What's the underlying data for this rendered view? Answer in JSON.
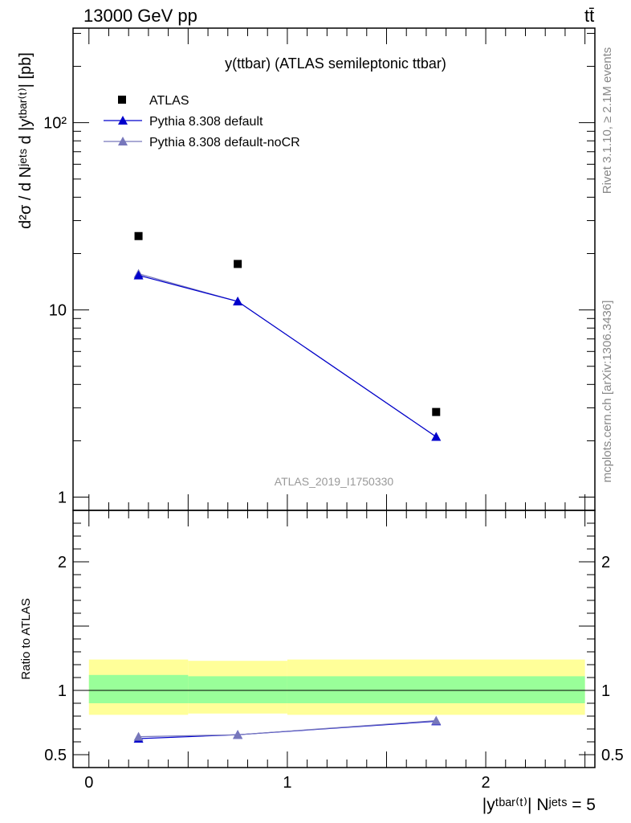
{
  "header": {
    "left": "13000 GeV pp",
    "right": "tt̄"
  },
  "side_labels": {
    "rivet": "Rivet 3.1.10, ≥ 2.1M events",
    "mcplots": "mcplots.cern.ch [arXiv:1306.3436]"
  },
  "chart_data": [
    {
      "type": "scatter",
      "panel": "main",
      "title": "y(ttbar) (ATLAS semileptonic ttbar)",
      "ylabel": "d²σ / d Nʲᵉᵗˢ d |yᵗᵇᵃʳ⁽ᵗ⁾| [pb]",
      "xlabel": "",
      "yscale": "log",
      "xlim": [
        -0.08,
        2.55
      ],
      "ylim": [
        0.85,
        320
      ],
      "yticks": [
        {
          "value": 1,
          "label": "1"
        },
        {
          "value": 10,
          "label": "10"
        },
        {
          "value": 100,
          "label": "10²"
        }
      ],
      "analysis_id": "ATLAS_2019_I1750330",
      "legend_position": "top-left",
      "series": [
        {
          "name": "ATLAS",
          "color": "#000000",
          "marker": "square",
          "x": [
            0.25,
            0.75,
            1.75
          ],
          "y": [
            24.8,
            17.6,
            2.85
          ]
        },
        {
          "name": "Pythia 8.308 default",
          "color": "#0000cc",
          "marker": "triangle",
          "x": [
            0.25,
            0.75,
            1.75
          ],
          "y": [
            15.3,
            11.1,
            2.1
          ]
        },
        {
          "name": "Pythia 8.308 default-noCR",
          "color": "#7777bb",
          "marker": "triangle",
          "x": [
            0.25,
            0.75,
            1.75
          ],
          "y": [
            15.6,
            11.1,
            2.1
          ]
        }
      ]
    },
    {
      "type": "line",
      "panel": "ratio",
      "ylabel": "Ratio to ATLAS",
      "xlabel": "|yᵗᵇᵃʳ⁽ᵗ⁾| Nʲᵉᵗˢ = 5",
      "xlim": [
        -0.08,
        2.55
      ],
      "ylim": [
        0.4,
        2.4
      ],
      "yticks": [
        {
          "value": 0.5,
          "label": "0.5"
        },
        {
          "value": 1,
          "label": "1"
        },
        {
          "value": 2,
          "label": "2"
        }
      ],
      "xticks": [
        {
          "value": 0,
          "label": "0"
        },
        {
          "value": 1,
          "label": "1"
        },
        {
          "value": 2,
          "label": "2"
        }
      ],
      "bands": [
        {
          "name": "yellow",
          "color": "#ffff99",
          "bins": [
            {
              "x0": 0,
              "x1": 0.5,
              "lo": 0.81,
              "hi": 1.24
            },
            {
              "x0": 0.5,
              "x1": 1.0,
              "lo": 0.82,
              "hi": 1.23
            },
            {
              "x0": 1.0,
              "x1": 2.5,
              "lo": 0.81,
              "hi": 1.24
            }
          ]
        },
        {
          "name": "green",
          "color": "#99ff99",
          "bins": [
            {
              "x0": 0,
              "x1": 0.5,
              "lo": 0.9,
              "hi": 1.12
            },
            {
              "x0": 0.5,
              "x1": 1.0,
              "lo": 0.9,
              "hi": 1.11
            },
            {
              "x0": 1.0,
              "x1": 2.5,
              "lo": 0.9,
              "hi": 1.11
            }
          ]
        }
      ],
      "series": [
        {
          "name": "Pythia 8.308 default",
          "color": "#0000cc",
          "x": [
            0.25,
            0.75,
            1.75
          ],
          "y": [
            0.625,
            0.655,
            0.76
          ]
        },
        {
          "name": "Pythia 8.308 default-noCR",
          "color": "#7777bb",
          "x": [
            0.25,
            0.75,
            1.75
          ],
          "y": [
            0.64,
            0.655,
            0.765
          ]
        }
      ]
    }
  ]
}
